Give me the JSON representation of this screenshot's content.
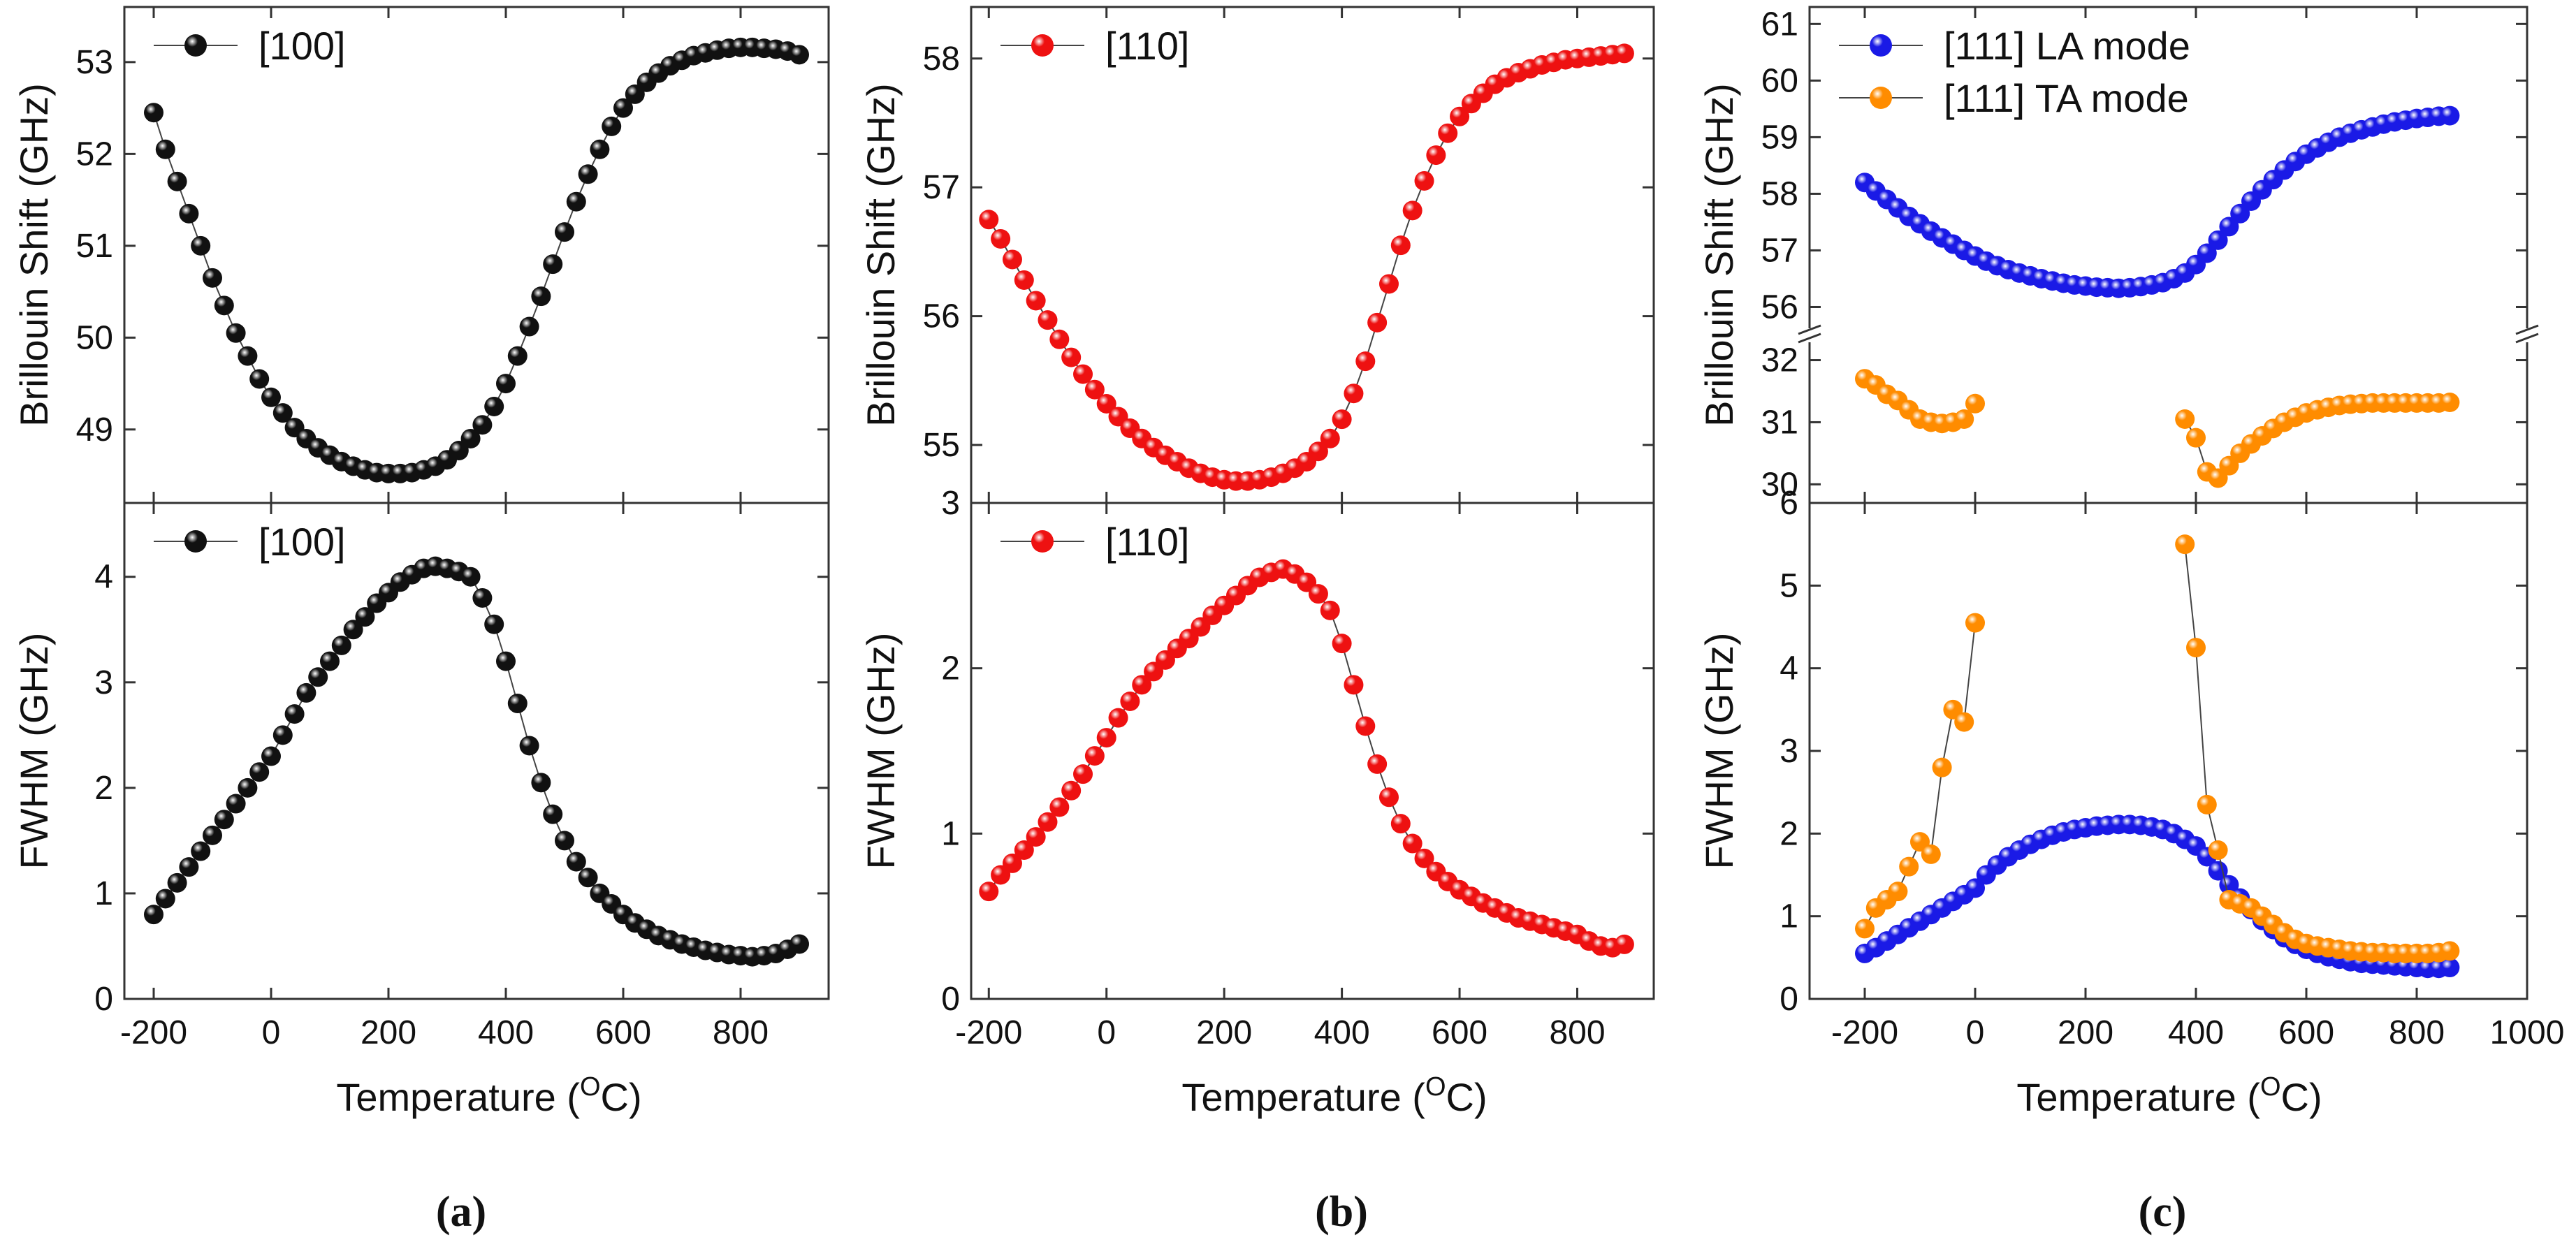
{
  "figure": {
    "sup_label": "O",
    "panels": [
      {
        "caption": "(a)",
        "x_axis": {
          "label_pre": "Temperature (",
          "label_sup": "O",
          "label_post": "C)",
          "range": [
            -250,
            950
          ],
          "ticks": [
            -200,
            0,
            200,
            400,
            600,
            800
          ]
        },
        "color": "#111111"
      },
      {
        "caption": "(b)",
        "x_axis": {
          "label_pre": "Temperature (",
          "label_sup": "O",
          "label_post": "C)",
          "range": [
            -230,
            930
          ],
          "ticks": [
            -200,
            0,
            200,
            400,
            600,
            800
          ]
        },
        "color": "#ee1111"
      },
      {
        "caption": "(c)",
        "x_axis": {
          "label_pre": "Temperature (",
          "label_sup": "O",
          "label_post": "C)",
          "range": [
            -300,
            1000
          ],
          "ticks": [
            -200,
            0,
            200,
            400,
            600,
            800,
            1000
          ]
        },
        "colors": {
          "LA": "#1a1ae6",
          "TA": "#ff8c00"
        }
      }
    ]
  },
  "chart_data": [
    {
      "id": "a-top",
      "type": "scatter",
      "panel": "(a)",
      "ylabel": "Brillouin Shift (GHz)",
      "xlabel": "Temperature (OC)",
      "xlim": [
        -250,
        950
      ],
      "ylim": [
        48.2,
        53.6
      ],
      "yticks": [
        49,
        50,
        51,
        52,
        53
      ],
      "legend_position": "top-left",
      "series": [
        {
          "name": "[100]",
          "color": "#111111",
          "marker": "sphere",
          "line": true,
          "x": [
            -200,
            -180,
            -160,
            -140,
            -120,
            -100,
            -80,
            -60,
            -40,
            -20,
            0,
            20,
            40,
            60,
            80,
            100,
            120,
            140,
            160,
            180,
            200,
            220,
            240,
            260,
            280,
            300,
            320,
            340,
            360,
            380,
            400,
            420,
            440,
            460,
            480,
            500,
            520,
            540,
            560,
            580,
            600,
            620,
            640,
            660,
            680,
            700,
            720,
            740,
            760,
            780,
            800,
            820,
            840,
            860,
            880,
            900
          ],
          "y": [
            52.45,
            52.05,
            51.7,
            51.35,
            51.0,
            50.65,
            50.35,
            50.05,
            49.8,
            49.55,
            49.35,
            49.18,
            49.02,
            48.9,
            48.8,
            48.72,
            48.65,
            48.6,
            48.56,
            48.53,
            48.52,
            48.52,
            48.53,
            48.56,
            48.6,
            48.67,
            48.77,
            48.9,
            49.05,
            49.25,
            49.5,
            49.8,
            50.12,
            50.45,
            50.8,
            51.15,
            51.48,
            51.78,
            52.05,
            52.3,
            52.5,
            52.65,
            52.78,
            52.88,
            52.96,
            53.02,
            53.07,
            53.1,
            53.13,
            53.15,
            53.16,
            53.16,
            53.15,
            53.14,
            53.12,
            53.08
          ]
        }
      ]
    },
    {
      "id": "a-bottom",
      "type": "scatter",
      "panel": "(a)",
      "ylabel": "FWHM (GHz)",
      "xlabel": "Temperature (OC)",
      "xlim": [
        -250,
        950
      ],
      "ylim": [
        0,
        4.7
      ],
      "yticks": [
        0,
        1,
        2,
        3,
        4
      ],
      "legend_position": "top-left",
      "series": [
        {
          "name": "[100]",
          "color": "#111111",
          "marker": "sphere",
          "line": true,
          "x": [
            -200,
            -180,
            -160,
            -140,
            -120,
            -100,
            -80,
            -60,
            -40,
            -20,
            0,
            20,
            40,
            60,
            80,
            100,
            120,
            140,
            160,
            180,
            200,
            220,
            240,
            260,
            280,
            300,
            320,
            340,
            360,
            380,
            400,
            420,
            440,
            460,
            480,
            500,
            520,
            540,
            560,
            580,
            600,
            620,
            640,
            660,
            680,
            700,
            720,
            740,
            760,
            780,
            800,
            820,
            840,
            860,
            880,
            900
          ],
          "y": [
            0.8,
            0.95,
            1.1,
            1.25,
            1.4,
            1.55,
            1.7,
            1.85,
            2.0,
            2.15,
            2.3,
            2.5,
            2.7,
            2.9,
            3.05,
            3.2,
            3.35,
            3.5,
            3.62,
            3.75,
            3.85,
            3.95,
            4.02,
            4.08,
            4.1,
            4.08,
            4.05,
            4.0,
            3.8,
            3.55,
            3.2,
            2.8,
            2.4,
            2.05,
            1.75,
            1.5,
            1.3,
            1.15,
            1.0,
            0.9,
            0.8,
            0.72,
            0.66,
            0.6,
            0.56,
            0.52,
            0.49,
            0.46,
            0.44,
            0.42,
            0.41,
            0.4,
            0.41,
            0.43,
            0.47,
            0.52
          ]
        }
      ]
    },
    {
      "id": "b-top",
      "type": "scatter",
      "panel": "(b)",
      "ylabel": "Brillouin Shift (GHz)",
      "xlabel": "Temperature (OC)",
      "xlim": [
        -230,
        930
      ],
      "ylim": [
        54.55,
        58.4
      ],
      "yticks": [
        55,
        56,
        57,
        58
      ],
      "legend_position": "top-left",
      "series": [
        {
          "name": "[110]",
          "color": "#ee1111",
          "marker": "sphere",
          "line": true,
          "x": [
            -200,
            -180,
            -160,
            -140,
            -120,
            -100,
            -80,
            -60,
            -40,
            -20,
            0,
            20,
            40,
            60,
            80,
            100,
            120,
            140,
            160,
            180,
            200,
            220,
            240,
            260,
            280,
            300,
            320,
            340,
            360,
            380,
            400,
            420,
            440,
            460,
            480,
            500,
            520,
            540,
            560,
            580,
            600,
            620,
            640,
            660,
            680,
            700,
            720,
            740,
            760,
            780,
            800,
            820,
            840,
            860,
            880
          ],
          "y": [
            56.75,
            56.6,
            56.44,
            56.28,
            56.12,
            55.97,
            55.82,
            55.68,
            55.55,
            55.43,
            55.32,
            55.22,
            55.13,
            55.05,
            54.98,
            54.92,
            54.87,
            54.82,
            54.78,
            54.75,
            54.73,
            54.72,
            54.72,
            54.73,
            54.75,
            54.78,
            54.82,
            54.87,
            54.95,
            55.05,
            55.2,
            55.4,
            55.65,
            55.95,
            56.25,
            56.55,
            56.82,
            57.05,
            57.25,
            57.42,
            57.55,
            57.65,
            57.73,
            57.8,
            57.85,
            57.89,
            57.92,
            57.95,
            57.97,
            57.99,
            58.0,
            58.01,
            58.02,
            58.03,
            58.04
          ]
        }
      ]
    },
    {
      "id": "b-bottom",
      "type": "scatter",
      "panel": "(b)",
      "ylabel": "FWHM (GHz)",
      "xlabel": "Temperature (OC)",
      "xlim": [
        -230,
        930
      ],
      "ylim": [
        0,
        3
      ],
      "yticks": [
        0,
        1,
        2,
        3
      ],
      "legend_position": "top-left",
      "series": [
        {
          "name": "[110]",
          "color": "#ee1111",
          "marker": "sphere",
          "line": true,
          "x": [
            -200,
            -180,
            -160,
            -140,
            -120,
            -100,
            -80,
            -60,
            -40,
            -20,
            0,
            20,
            40,
            60,
            80,
            100,
            120,
            140,
            160,
            180,
            200,
            220,
            240,
            260,
            280,
            300,
            320,
            340,
            360,
            380,
            400,
            420,
            440,
            460,
            480,
            500,
            520,
            540,
            560,
            580,
            600,
            620,
            640,
            660,
            680,
            700,
            720,
            740,
            760,
            780,
            800,
            820,
            840,
            860,
            880
          ],
          "y": [
            0.65,
            0.75,
            0.82,
            0.9,
            0.98,
            1.07,
            1.16,
            1.26,
            1.36,
            1.47,
            1.58,
            1.7,
            1.8,
            1.9,
            1.98,
            2.05,
            2.12,
            2.18,
            2.25,
            2.32,
            2.38,
            2.44,
            2.5,
            2.55,
            2.58,
            2.6,
            2.57,
            2.52,
            2.45,
            2.35,
            2.15,
            1.9,
            1.65,
            1.42,
            1.22,
            1.06,
            0.94,
            0.85,
            0.77,
            0.71,
            0.66,
            0.62,
            0.58,
            0.55,
            0.52,
            0.49,
            0.47,
            0.45,
            0.43,
            0.41,
            0.39,
            0.35,
            0.32,
            0.31,
            0.33
          ]
        }
      ]
    },
    {
      "id": "c-top",
      "type": "scatter",
      "panel": "(c)",
      "ylabel": "Brillouin Shift (GHz)",
      "xlabel": "Temperature (OC)",
      "xlim": [
        -300,
        1000
      ],
      "axis_break": true,
      "ylim_upper": [
        55.5,
        61.3
      ],
      "yticks_upper": [
        56,
        57,
        58,
        59,
        60,
        61
      ],
      "ylim_lower": [
        29.7,
        32.4
      ],
      "yticks_lower": [
        30,
        31,
        32
      ],
      "legend_position": "top-left",
      "series": [
        {
          "name": "[111] LA mode",
          "color": "#1a1ae6",
          "marker": "sphere",
          "line": true,
          "x": [
            -200,
            -180,
            -160,
            -140,
            -120,
            -100,
            -80,
            -60,
            -40,
            -20,
            0,
            20,
            40,
            60,
            80,
            100,
            120,
            140,
            160,
            180,
            200,
            220,
            240,
            260,
            280,
            300,
            320,
            340,
            360,
            380,
            400,
            420,
            440,
            460,
            480,
            500,
            520,
            540,
            560,
            580,
            600,
            620,
            640,
            660,
            680,
            700,
            720,
            740,
            760,
            780,
            800,
            820,
            840,
            860
          ],
          "y": [
            58.2,
            58.05,
            57.9,
            57.75,
            57.6,
            57.47,
            57.34,
            57.22,
            57.11,
            57.0,
            56.9,
            56.81,
            56.73,
            56.66,
            56.6,
            56.55,
            56.5,
            56.46,
            56.42,
            56.39,
            56.37,
            56.35,
            56.34,
            56.33,
            56.34,
            56.36,
            56.39,
            56.43,
            56.5,
            56.6,
            56.75,
            56.95,
            57.18,
            57.42,
            57.65,
            57.87,
            58.07,
            58.25,
            58.42,
            58.57,
            58.7,
            58.81,
            58.91,
            59.0,
            59.07,
            59.13,
            59.18,
            59.23,
            59.27,
            59.3,
            59.33,
            59.35,
            59.37,
            59.38
          ]
        },
        {
          "name": "[111] TA mode",
          "color": "#ff8c00",
          "marker": "sphere",
          "line": true,
          "x": [
            -200,
            -180,
            -160,
            -140,
            -120,
            -100,
            -80,
            -60,
            -40,
            -20,
            0,
            null,
            380,
            400,
            420,
            440,
            460,
            480,
            500,
            520,
            540,
            560,
            580,
            600,
            620,
            640,
            660,
            680,
            700,
            720,
            740,
            760,
            780,
            800,
            820,
            840,
            860
          ],
          "y": [
            31.7,
            31.6,
            31.45,
            31.35,
            31.2,
            31.05,
            31.0,
            30.98,
            31.0,
            31.05,
            31.3,
            null,
            31.05,
            30.75,
            30.2,
            30.1,
            30.3,
            30.5,
            30.65,
            30.78,
            30.9,
            31.0,
            31.08,
            31.15,
            31.2,
            31.24,
            31.27,
            31.29,
            31.3,
            31.31,
            31.31,
            31.31,
            31.31,
            31.31,
            31.31,
            31.31,
            31.32
          ]
        }
      ]
    },
    {
      "id": "c-bottom",
      "type": "scatter",
      "panel": "(c)",
      "ylabel": "FWHM (GHz)",
      "xlabel": "Temperature (OC)",
      "xlim": [
        -300,
        1000
      ],
      "ylim": [
        0,
        6
      ],
      "yticks": [
        0,
        1,
        2,
        3,
        4,
        5,
        6
      ],
      "series": [
        {
          "name": "[111] LA mode",
          "color": "#1a1ae6",
          "marker": "sphere",
          "line": true,
          "x": [
            -200,
            -180,
            -160,
            -140,
            -120,
            -100,
            -80,
            -60,
            -40,
            -20,
            0,
            20,
            40,
            60,
            80,
            100,
            120,
            140,
            160,
            180,
            200,
            220,
            240,
            260,
            280,
            300,
            320,
            340,
            360,
            380,
            400,
            420,
            440,
            460,
            480,
            500,
            520,
            540,
            560,
            580,
            600,
            620,
            640,
            660,
            680,
            700,
            720,
            740,
            760,
            780,
            800,
            820,
            840,
            860
          ],
          "y": [
            0.55,
            0.62,
            0.7,
            0.78,
            0.86,
            0.94,
            1.02,
            1.1,
            1.18,
            1.26,
            1.34,
            1.5,
            1.62,
            1.72,
            1.8,
            1.87,
            1.93,
            1.98,
            2.02,
            2.05,
            2.07,
            2.09,
            2.1,
            2.11,
            2.11,
            2.1,
            2.08,
            2.05,
            2.0,
            1.93,
            1.85,
            1.72,
            1.55,
            1.38,
            1.22,
            1.08,
            0.95,
            0.84,
            0.74,
            0.66,
            0.6,
            0.55,
            0.51,
            0.48,
            0.45,
            0.43,
            0.42,
            0.41,
            0.4,
            0.39,
            0.38,
            0.37,
            0.37,
            0.38
          ]
        },
        {
          "name": "[111] TA mode",
          "color": "#ff8c00",
          "marker": "sphere",
          "line": true,
          "x": [
            -200,
            -180,
            -160,
            -140,
            -120,
            -100,
            -80,
            -60,
            -40,
            -20,
            0,
            null,
            380,
            400,
            420,
            440,
            460,
            480,
            500,
            520,
            540,
            560,
            580,
            600,
            620,
            640,
            660,
            680,
            700,
            720,
            740,
            760,
            780,
            800,
            820,
            840,
            860
          ],
          "y": [
            0.85,
            1.1,
            1.2,
            1.3,
            1.6,
            1.9,
            1.75,
            2.8,
            3.5,
            3.35,
            4.55,
            null,
            5.5,
            4.25,
            2.35,
            1.8,
            1.2,
            1.15,
            1.1,
            1.0,
            0.9,
            0.8,
            0.72,
            0.67,
            0.64,
            0.62,
            0.6,
            0.58,
            0.57,
            0.56,
            0.56,
            0.55,
            0.55,
            0.55,
            0.55,
            0.56,
            0.58
          ]
        }
      ]
    }
  ]
}
